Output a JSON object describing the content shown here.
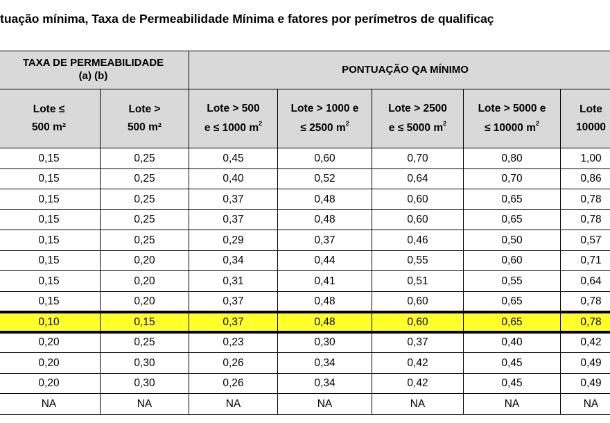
{
  "title": "tuação mínima, Taxa de Permeabilidade Mínima e fatores por perímetros de qualificaç",
  "header": {
    "group_left": "TAXA DE PERMEABILIDADE\n(a) (b)",
    "group_right": "PONTUAÇÃO QA MÍNIMO",
    "columns": [
      {
        "line1": "Lote ≤",
        "line2": "500 m²"
      },
      {
        "line1": "Lote >",
        "line2": "500 m²"
      },
      {
        "line1": "Lote > 500",
        "line2": "e ≤ 1000 m",
        "sup": "2"
      },
      {
        "line1": "Lote > 1000 e",
        "line2": "≤ 2500 m",
        "sup": "2"
      },
      {
        "line1": "Lote > 2500",
        "line2": "e ≤ 5000 m",
        "sup": "2"
      },
      {
        "line1": "Lote > 5000 e",
        "line2": "≤ 10000 m",
        "sup": "2"
      },
      {
        "line1": "Lote",
        "line2": "10000"
      }
    ]
  },
  "rows": [
    [
      "0,15",
      "0,25",
      "0,45",
      "0,60",
      "0,70",
      "0,80",
      "1,00"
    ],
    [
      "0,15",
      "0,25",
      "0,40",
      "0,52",
      "0,64",
      "0,70",
      "0,86"
    ],
    [
      "0,15",
      "0,25",
      "0,37",
      "0,48",
      "0,60",
      "0,65",
      "0,78"
    ],
    [
      "0,15",
      "0,25",
      "0,37",
      "0,48",
      "0,60",
      "0,65",
      "0,78"
    ],
    [
      "0,15",
      "0,25",
      "0,29",
      "0,37",
      "0,46",
      "0,50",
      "0,57"
    ],
    [
      "0,15",
      "0,20",
      "0,34",
      "0,44",
      "0,55",
      "0,60",
      "0,71"
    ],
    [
      "0,15",
      "0,20",
      "0,31",
      "0,41",
      "0,51",
      "0,55",
      "0,64"
    ],
    [
      "0,15",
      "0,20",
      "0,37",
      "0,48",
      "0,60",
      "0,65",
      "0,78"
    ],
    [
      "0,10",
      "0,15",
      "0,37",
      "0,48",
      "0,60",
      "0,65",
      "0,78"
    ],
    [
      "0,20",
      "0,25",
      "0,23",
      "0,30",
      "0,37",
      "0,40",
      "0,42"
    ],
    [
      "0,20",
      "0,30",
      "0,26",
      "0,34",
      "0,42",
      "0,45",
      "0,49"
    ],
    [
      "0,20",
      "0,30",
      "0,26",
      "0,34",
      "0,42",
      "0,45",
      "0,49"
    ],
    [
      "NA",
      "NA",
      "NA",
      "NA",
      "NA",
      "NA",
      "NA"
    ]
  ],
  "highlighted_row_index": 8,
  "colors": {
    "header_bg": "#d9d9d9",
    "highlight": "#ffff2a"
  }
}
